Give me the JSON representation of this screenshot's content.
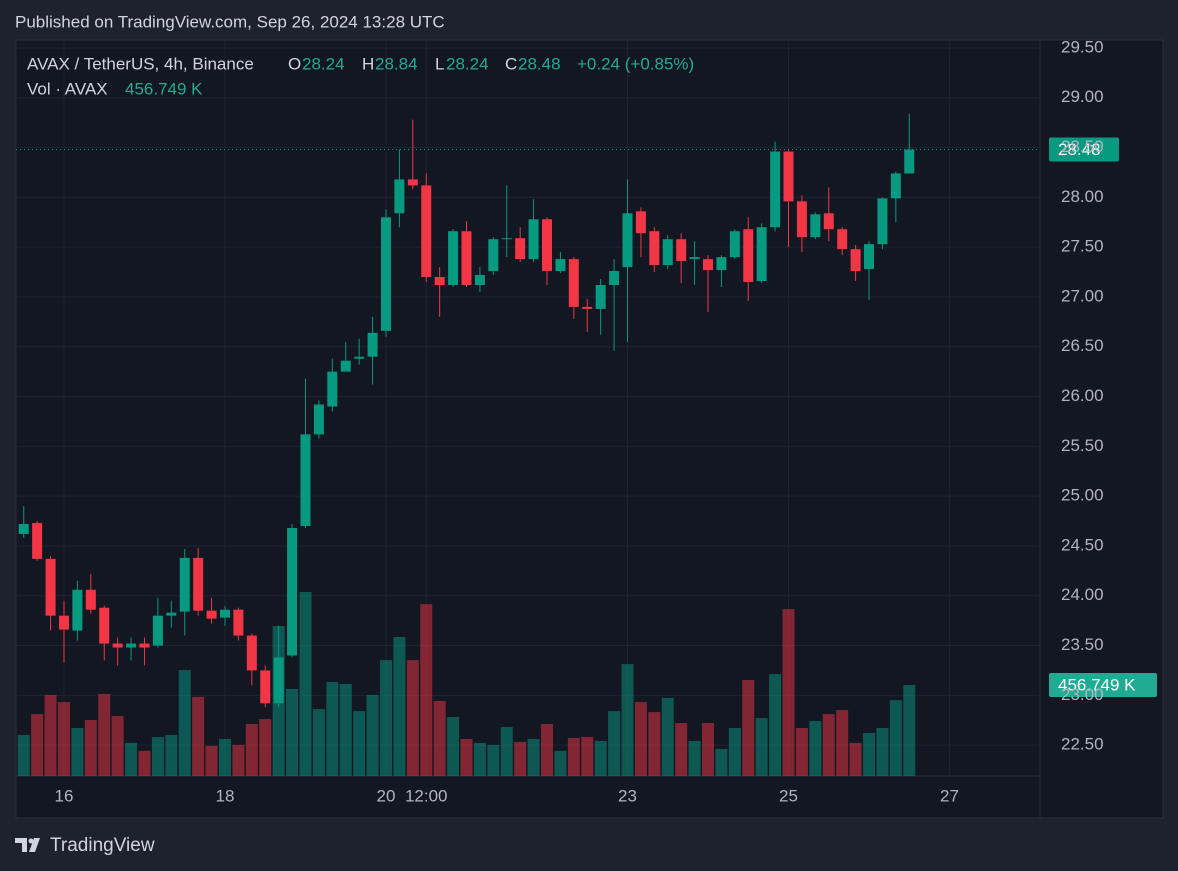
{
  "header": {
    "published": "Published on TradingView.com, Sep 26, 2024 13:28 UTC"
  },
  "footer": {
    "brand": "TradingView"
  },
  "chart_data": {
    "type": "candlestick",
    "title": "AVAX / TetherUS, 4h, Binance",
    "ohlc_labels": [
      "O",
      "H",
      "L",
      "C"
    ],
    "ohlc_values": [
      28.24,
      28.84,
      28.24,
      28.48
    ],
    "change": "+0.24 (+0.85%)",
    "volume_title": "Vol · AVAX",
    "volume_last_label": "456.749 K",
    "up_color": "#089981",
    "down_color": "#f23645",
    "grid": true,
    "x": [
      15.5,
      15.6667,
      15.8333,
      16,
      16.1667,
      16.3333,
      16.5,
      16.6667,
      16.8333,
      17,
      17.1667,
      17.3333,
      17.5,
      17.6667,
      17.8333,
      18,
      18.1667,
      18.3333,
      18.5,
      18.6667,
      18.8333,
      19,
      19.1667,
      19.3333,
      19.5,
      19.6667,
      19.8333,
      20,
      20.1667,
      20.3333,
      20.5,
      20.6667,
      20.8333,
      21,
      21.1667,
      21.3333,
      21.5,
      21.6667,
      21.8333,
      22,
      22.1667,
      22.3333,
      22.5,
      22.6667,
      22.8333,
      23,
      23.1667,
      23.3333,
      23.5,
      23.6667,
      23.8333,
      24,
      24.1667,
      24.3333,
      24.5,
      24.6667,
      24.8333,
      25,
      25.1667,
      25.3333,
      25.5,
      25.6667,
      25.8333,
      26,
      26.1667,
      26.3333,
      26.5
    ],
    "open": [
      24.62,
      24.73,
      24.37,
      23.8,
      23.65,
      24.06,
      23.88,
      23.52,
      23.48,
      23.52,
      23.5,
      23.8,
      23.84,
      24.38,
      23.85,
      23.78,
      23.86,
      23.6,
      23.25,
      22.92,
      23.4,
      24.7,
      25.62,
      25.9,
      26.25,
      26.38,
      26.4,
      26.66,
      27.84,
      28.18,
      28.12,
      27.2,
      27.12,
      27.66,
      27.12,
      27.26,
      27.58,
      27.59,
      27.38,
      27.78,
      27.26,
      27.38,
      26.9,
      26.88,
      27.12,
      27.3,
      27.86,
      27.66,
      27.32,
      27.58,
      27.38,
      27.38,
      27.27,
      27.4,
      27.68,
      27.16,
      27.7,
      28.46,
      27.96,
      27.6,
      27.84,
      27.68,
      27.48,
      27.28,
      27.53,
      27.99,
      28.24
    ],
    "high": [
      24.9,
      24.75,
      24.4,
      23.95,
      24.15,
      24.22,
      23.9,
      23.58,
      23.58,
      23.58,
      23.98,
      23.95,
      24.47,
      24.48,
      23.98,
      23.9,
      23.88,
      23.62,
      23.3,
      23.7,
      24.72,
      26.18,
      25.96,
      26.38,
      26.55,
      26.58,
      26.8,
      27.88,
      28.48,
      28.78,
      28.24,
      27.3,
      27.68,
      27.76,
      27.3,
      27.6,
      28.12,
      27.7,
      27.98,
      27.8,
      27.45,
      27.4,
      26.98,
      27.18,
      27.38,
      28.18,
      27.9,
      27.7,
      27.62,
      27.64,
      27.56,
      27.42,
      27.42,
      27.68,
      27.8,
      27.74,
      28.56,
      28.48,
      28.02,
      27.85,
      28.1,
      27.7,
      27.52,
      27.56,
      28.0,
      28.26,
      28.84
    ],
    "low": [
      24.58,
      24.35,
      23.65,
      23.33,
      23.55,
      23.82,
      23.35,
      23.3,
      23.35,
      23.3,
      23.48,
      23.68,
      23.6,
      23.8,
      23.72,
      23.7,
      23.55,
      23.1,
      22.88,
      22.88,
      23.38,
      24.68,
      25.58,
      25.85,
      26.25,
      26.32,
      26.12,
      26.6,
      27.7,
      28.08,
      27.15,
      26.8,
      27.1,
      27.1,
      27.05,
      27.22,
      27.4,
      27.35,
      27.35,
      27.12,
      27.24,
      26.78,
      26.65,
      26.62,
      26.46,
      26.55,
      27.4,
      27.25,
      27.28,
      27.14,
      27.12,
      26.85,
      27.1,
      27.38,
      26.96,
      27.14,
      27.66,
      27.5,
      27.45,
      27.58,
      27.56,
      27.42,
      27.16,
      26.97,
      27.48,
      27.75,
      28.24
    ],
    "close": [
      24.72,
      24.37,
      23.8,
      23.66,
      24.06,
      23.86,
      23.52,
      23.48,
      23.52,
      23.48,
      23.8,
      23.83,
      24.38,
      23.85,
      23.77,
      23.86,
      23.6,
      23.25,
      22.92,
      23.38,
      24.68,
      25.62,
      25.92,
      26.25,
      26.36,
      26.4,
      26.64,
      27.8,
      28.18,
      28.12,
      27.2,
      27.12,
      27.66,
      27.12,
      27.22,
      27.58,
      27.59,
      27.38,
      27.78,
      27.26,
      27.38,
      26.9,
      26.88,
      27.12,
      27.26,
      27.84,
      27.64,
      27.32,
      27.58,
      27.36,
      27.4,
      27.27,
      27.4,
      27.66,
      27.15,
      27.7,
      28.46,
      27.96,
      27.6,
      27.83,
      27.68,
      27.48,
      27.26,
      27.53,
      27.99,
      28.24,
      28.48
    ],
    "volume": [
      206,
      311,
      407,
      371,
      241,
      281,
      412,
      301,
      166,
      126,
      196,
      206,
      532,
      397,
      151,
      186,
      156,
      261,
      286,
      753,
      437,
      924,
      336,
      472,
      462,
      326,
      407,
      582,
      698,
      582,
      863,
      377,
      296,
      186,
      166,
      156,
      246,
      171,
      186,
      261,
      126,
      191,
      196,
      176,
      326,
      562,
      371,
      321,
      392,
      266,
      176,
      266,
      136,
      241,
      482,
      291,
      512,
      838,
      241,
      276,
      311,
      331,
      166,
      216,
      241,
      381,
      456.749
    ],
    "xlim": [
      15.404,
      28.124
    ],
    "xticks": [
      16,
      18,
      20,
      {
        "value": 20.5,
        "label": "12:00"
      },
      23,
      25,
      27
    ],
    "ylim": [
      22.19,
      29.58
    ],
    "yticks": [
      {
        "value": 22.5,
        "label": "22.50"
      },
      {
        "value": 23,
        "label": "23.00"
      },
      {
        "value": 23.5,
        "label": "23.50"
      },
      {
        "value": 24,
        "label": "24.00"
      },
      {
        "value": 24.5,
        "label": "24.50"
      },
      {
        "value": 25,
        "label": "25.00"
      },
      {
        "value": 25.5,
        "label": "25.50"
      },
      {
        "value": 26,
        "label": "26.00"
      },
      {
        "value": 26.5,
        "label": "26.50"
      },
      {
        "value": 27,
        "label": "27.00"
      },
      {
        "value": 27.5,
        "label": "27.50"
      },
      {
        "value": 28,
        "label": "28.00"
      },
      {
        "value": 28.5,
        "label": "28.50"
      },
      {
        "value": 29,
        "label": "29.00"
      },
      {
        "value": 29.5,
        "label": "29.50"
      }
    ]
  }
}
